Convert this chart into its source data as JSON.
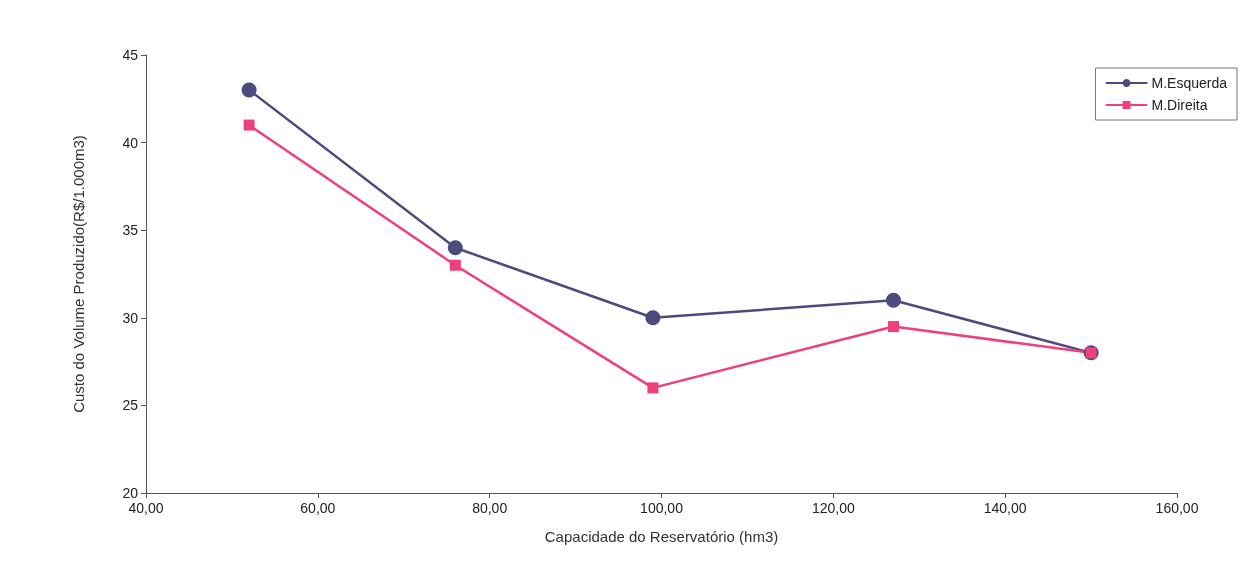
{
  "chart_data": {
    "type": "line",
    "xlabel": "Capacidade do Reservatório (hm3)",
    "ylabel": "Custo do Volume Produzido(R$/1.000m3)",
    "x": [
      52,
      76,
      99,
      127,
      150
    ],
    "series": [
      {
        "name": "M.Esquerda",
        "color": "#4b4b7d",
        "marker": "circle",
        "values": [
          43,
          34,
          30,
          31,
          28
        ]
      },
      {
        "name": "M.Direita",
        "color": "#f0407a",
        "marker": "square",
        "values": [
          41,
          33,
          26,
          29.5,
          28
        ]
      }
    ],
    "xlim": [
      40,
      160
    ],
    "xticks": [
      {
        "value": 40,
        "label": "40,00"
      },
      {
        "value": 60,
        "label": "60,00"
      },
      {
        "value": 80,
        "label": "80,00"
      },
      {
        "value": 100,
        "label": "100,00"
      },
      {
        "value": 120,
        "label": "120,00"
      },
      {
        "value": 140,
        "label": "140,00"
      },
      {
        "value": 160,
        "label": "160,00"
      }
    ],
    "ylim": [
      20,
      45
    ],
    "yticks": [
      20,
      25,
      30,
      35,
      40,
      45
    ],
    "grid": false,
    "legend": "top right",
    "line_style": "solid"
  }
}
